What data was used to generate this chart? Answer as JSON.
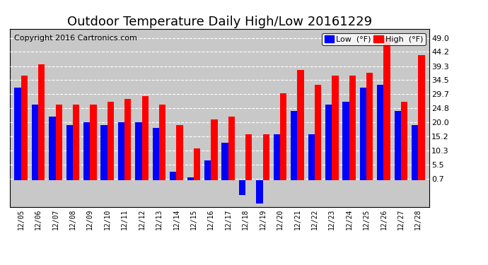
{
  "title": "Outdoor Temperature Daily High/Low 20161229",
  "copyright": "Copyright 2016 Cartronics.com",
  "legend_low_label": "Low  (°F)",
  "legend_high_label": "High  (°F)",
  "dates": [
    "12/05",
    "12/06",
    "12/07",
    "12/08",
    "12/09",
    "12/10",
    "12/11",
    "12/12",
    "12/13",
    "12/14",
    "12/15",
    "12/16",
    "12/17",
    "12/18",
    "12/19",
    "12/20",
    "12/21",
    "12/22",
    "12/23",
    "12/24",
    "12/25",
    "12/26",
    "12/27",
    "12/28"
  ],
  "low_values": [
    32,
    26,
    22,
    19,
    20,
    19,
    20,
    20,
    18,
    3,
    1,
    7,
    13,
    -5,
    -8,
    16,
    24,
    16,
    26,
    27,
    32,
    33,
    24,
    19
  ],
  "high_values": [
    36,
    40,
    26,
    26,
    26,
    27,
    28,
    29,
    26,
    19,
    11,
    21,
    22,
    16,
    16,
    30,
    38,
    33,
    36,
    36,
    37,
    49,
    27,
    43
  ],
  "yticks": [
    0.7,
    5.5,
    10.3,
    15.2,
    20.0,
    24.8,
    29.7,
    34.5,
    39.3,
    44.2,
    49.0
  ],
  "ymin": -9.0,
  "ymax": 52.0,
  "low_color": "#0000ff",
  "high_color": "#ff0000",
  "bg_color": "#ffffff",
  "plot_bg_color": "#c8c8c8",
  "grid_color": "#ffffff",
  "title_fontsize": 13,
  "copyright_fontsize": 8,
  "bar_width": 0.38
}
